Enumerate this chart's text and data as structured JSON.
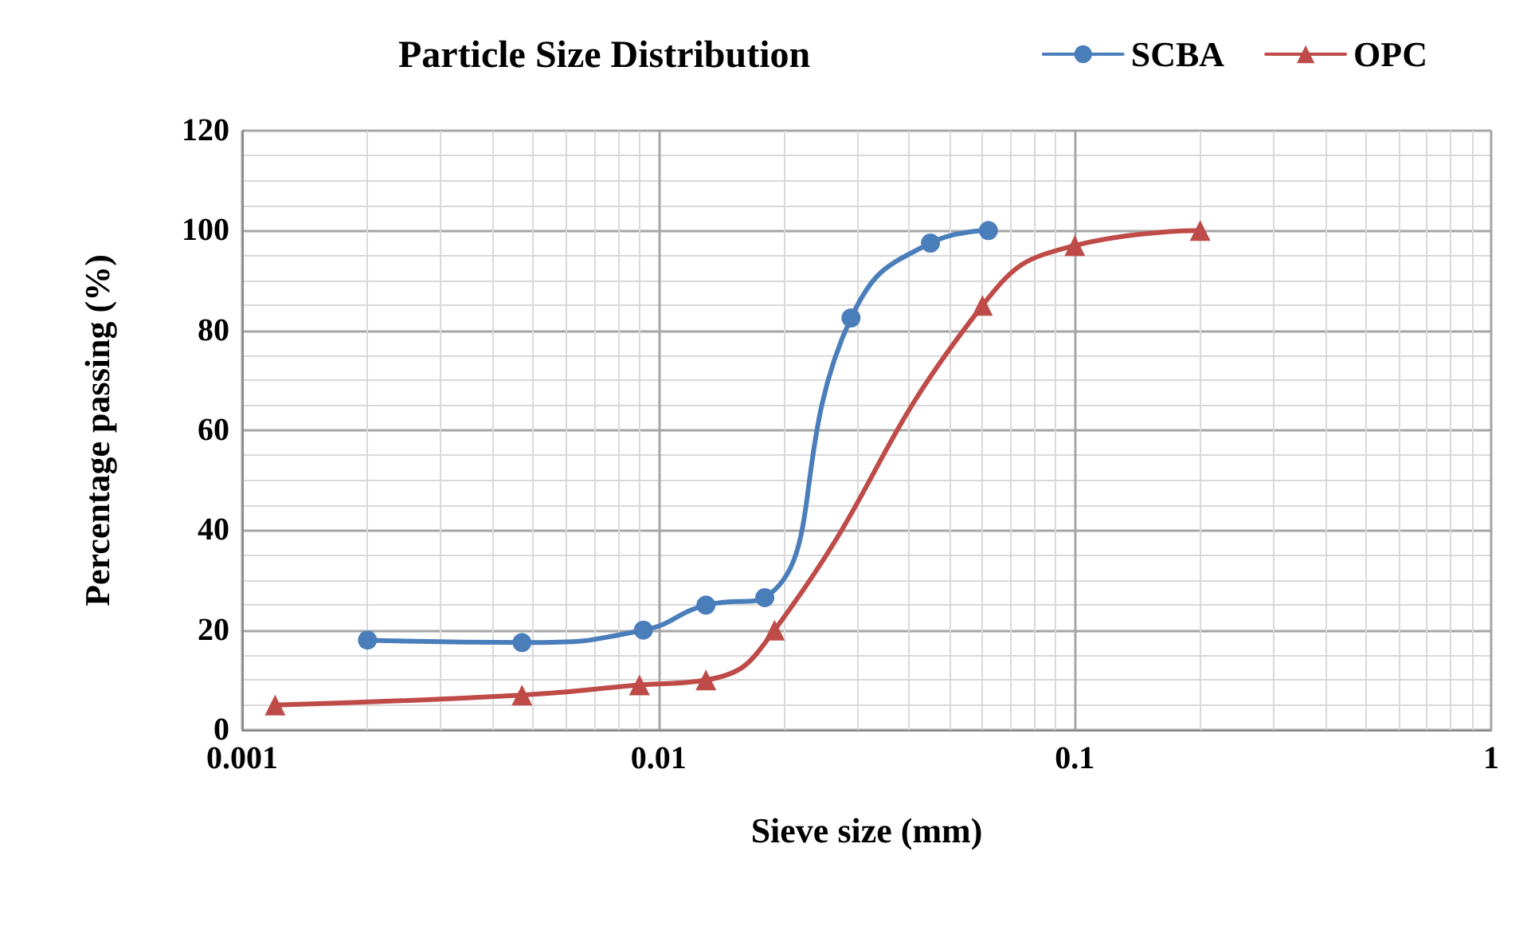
{
  "chart_data": {
    "type": "line",
    "title": "Particle Size Distribution",
    "xlabel": "Sieve size (mm)",
    "ylabel": "Percentage passing (%)",
    "log": "x",
    "xlim": [
      0.001,
      1
    ],
    "xticks": [
      0.001,
      0.01,
      0.1,
      1
    ],
    "ylim": [
      0,
      120
    ],
    "yticks": [
      0,
      20,
      40,
      60,
      80,
      100,
      120
    ],
    "grid": true,
    "legend": "top right",
    "series": [
      {
        "name": "SCBA",
        "color": "#4a7ebb",
        "marker": "circle",
        "x": [
          0.002,
          0.0047,
          0.0092,
          0.013,
          0.018,
          0.029,
          0.045,
          0.062
        ],
        "values": [
          18,
          17.5,
          20,
          25,
          26.5,
          82.5,
          97.5,
          100
        ]
      },
      {
        "name": "OPC",
        "color": "#be4b48",
        "marker": "triangle",
        "x": [
          0.0012,
          0.0047,
          0.009,
          0.013,
          0.019,
          0.06,
          0.1,
          0.2
        ],
        "values": [
          5,
          7,
          9,
          10,
          20,
          85,
          97,
          100
        ]
      }
    ]
  }
}
